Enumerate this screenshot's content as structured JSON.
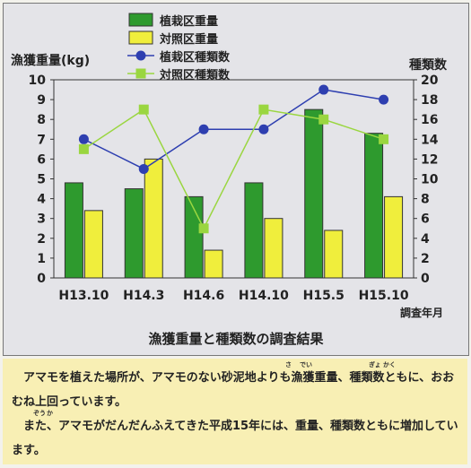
{
  "chart_data": {
    "type": "bar",
    "categories": [
      "H13.10",
      "H14.3",
      "H14.6",
      "H14.10",
      "H15.5",
      "H15.10"
    ],
    "series": [
      {
        "name": "植栽区重量",
        "kind": "bar",
        "axis": "left",
        "color": "#2e9a2e",
        "values": [
          4.8,
          4.5,
          4.1,
          4.8,
          8.5,
          7.3
        ]
      },
      {
        "name": "対照区重量",
        "kind": "bar",
        "axis": "left",
        "color": "#f0ee3c",
        "values": [
          3.4,
          6.0,
          1.4,
          3.0,
          2.4,
          4.1
        ]
      },
      {
        "name": "植栽区種類数",
        "kind": "line",
        "axis": "right",
        "marker": "circle",
        "color": "#2e3fb0",
        "values": [
          14,
          11,
          15,
          15,
          19,
          18
        ]
      },
      {
        "name": "対照区種類数",
        "kind": "line",
        "axis": "right",
        "marker": "square",
        "color": "#9ad640",
        "values": [
          13,
          17,
          5,
          17,
          16,
          14
        ]
      }
    ],
    "ylabel_left": "漁獲重量(kg)",
    "ylabel_right": "種類数",
    "xlabel": "調査年月",
    "ylim_left": [
      0,
      10
    ],
    "ylim_right": [
      0,
      20
    ],
    "yticks_left": [
      "0",
      "1",
      "2",
      "3",
      "4",
      "5",
      "6",
      "7",
      "8",
      "9",
      "10"
    ],
    "yticks_right": [
      "0",
      "2",
      "4",
      "6",
      "8",
      "10",
      "12",
      "14",
      "16",
      "18",
      "20"
    ],
    "title": "漁獲重量と種類数の調査結果",
    "grid": false,
    "legend_position": "top-center"
  },
  "description": {
    "paragraph1": "アマモを植えた場所が、アマモのない砂泥地よりも漁獲重量、種類数ともに、おおむね上回っています。",
    "paragraph2": "また、アマモがだんだんふえてきた平成15年には、重量、種類数ともに増加しています。",
    "ruby": [
      "さ",
      "でい",
      "ぎょ",
      "かく",
      "ぞう",
      "か"
    ]
  }
}
